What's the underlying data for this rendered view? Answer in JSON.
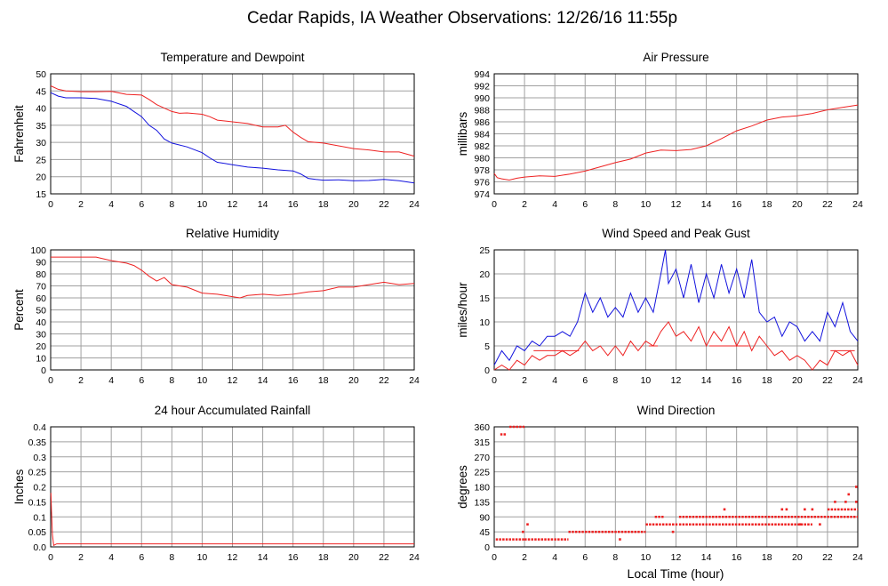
{
  "page": {
    "title": "Cedar Rapids, IA Weather Observations: 12/26/16 11:55p",
    "xlabel": "Local Time (hour)"
  },
  "colors": {
    "primary_series": "#ee2222",
    "secondary_series": "#1111dd",
    "grid": "#a0a0a0",
    "frame": "#000000"
  },
  "chart_data": [
    {
      "type": "line",
      "title": "Temperature and Dewpoint",
      "ylabel": "Fahrenheit",
      "xlim": [
        0,
        24
      ],
      "ylim": [
        15,
        50
      ],
      "xticks": [
        0,
        2,
        4,
        6,
        8,
        10,
        12,
        14,
        16,
        18,
        20,
        22,
        24
      ],
      "yticks": [
        15,
        20,
        25,
        30,
        35,
        40,
        45,
        50
      ],
      "grid": true,
      "series": [
        {
          "color": "#ee2222",
          "x": [
            0,
            0.5,
            1,
            2,
            3,
            4,
            5,
            6,
            6.5,
            7,
            7.5,
            8,
            8.5,
            9,
            10,
            10.5,
            11,
            12,
            13,
            13.5,
            14,
            15,
            15.5,
            16,
            16.5,
            17,
            18,
            19,
            20,
            21,
            22,
            23,
            24
          ],
          "y": [
            46.5,
            45.5,
            45,
            44.8,
            44.8,
            44.9,
            44,
            43.8,
            42.5,
            41,
            40,
            39,
            38.5,
            38.6,
            38.2,
            37.5,
            36.5,
            36,
            35.5,
            35,
            34.5,
            34.5,
            35,
            33,
            31.5,
            30.2,
            29.8,
            29,
            28.2,
            27.8,
            27.2,
            27.2,
            26
          ]
        },
        {
          "color": "#1111dd",
          "x": [
            0,
            0.5,
            1,
            2,
            3,
            4,
            5,
            5.5,
            6,
            6.5,
            7,
            7.5,
            8,
            9,
            10,
            10.5,
            11,
            12,
            13,
            14,
            15,
            16,
            16.5,
            17,
            17.5,
            18,
            19,
            20,
            21,
            22,
            23,
            24
          ],
          "y": [
            44.5,
            43.5,
            43,
            43,
            42.8,
            42,
            40.5,
            39,
            37.5,
            35,
            33.5,
            31,
            29.8,
            28.7,
            27,
            25.5,
            24.2,
            23.5,
            22.8,
            22.5,
            22,
            21.7,
            20.8,
            19.5,
            19.2,
            19,
            19.1,
            18.8,
            18.9,
            19.2,
            18.8,
            18.2
          ]
        }
      ]
    },
    {
      "type": "line",
      "title": "Air Pressure",
      "ylabel": "millibars",
      "xlim": [
        0,
        24
      ],
      "ylim": [
        974,
        994
      ],
      "xticks": [
        0,
        2,
        4,
        6,
        8,
        10,
        12,
        14,
        16,
        18,
        20,
        22,
        24
      ],
      "yticks": [
        974,
        976,
        978,
        980,
        982,
        984,
        986,
        988,
        990,
        992,
        994
      ],
      "grid": true,
      "series": [
        {
          "color": "#ee2222",
          "x": [
            0,
            0.2,
            0.5,
            1,
            1.5,
            2,
            3,
            4,
            5,
            6,
            7,
            8,
            9,
            10,
            11,
            12,
            13,
            14,
            15,
            16,
            17,
            18,
            19,
            20,
            21,
            22,
            23,
            24
          ],
          "y": [
            977.4,
            976.7,
            976.5,
            976.3,
            976.6,
            976.8,
            977,
            976.9,
            977.3,
            977.8,
            978.5,
            979.2,
            979.8,
            980.8,
            981.3,
            981.2,
            981.4,
            982,
            983.2,
            984.5,
            985.3,
            986.3,
            986.8,
            987,
            987.4,
            988,
            988.4,
            988.8
          ]
        }
      ]
    },
    {
      "type": "line",
      "title": "Relative Humidity",
      "ylabel": "Percent",
      "xlim": [
        0,
        24
      ],
      "ylim": [
        0,
        100
      ],
      "xticks": [
        0,
        2,
        4,
        6,
        8,
        10,
        12,
        14,
        16,
        18,
        20,
        22,
        24
      ],
      "yticks": [
        0,
        10,
        20,
        30,
        40,
        50,
        60,
        70,
        80,
        90,
        100
      ],
      "grid": true,
      "series": [
        {
          "color": "#ee2222",
          "x": [
            0,
            1,
            2,
            3,
            3.5,
            4,
            5,
            5.5,
            6,
            6.5,
            7,
            7.5,
            8,
            9,
            10,
            11,
            12,
            12.5,
            13,
            14,
            15,
            16,
            17,
            18,
            19,
            20,
            21,
            22,
            23,
            24
          ],
          "y": [
            94,
            94,
            94,
            94,
            92.5,
            91,
            89,
            87,
            83,
            78,
            74,
            77,
            71,
            69,
            64,
            63,
            61,
            60,
            62,
            63,
            62,
            63,
            65,
            66,
            69,
            69,
            71,
            73,
            71,
            72
          ]
        }
      ]
    },
    {
      "type": "line",
      "title": "Wind Speed and Peak Gust",
      "ylabel": "miles/hour",
      "xlim": [
        0,
        24
      ],
      "ylim": [
        0,
        25
      ],
      "xticks": [
        0,
        2,
        4,
        6,
        8,
        10,
        12,
        14,
        16,
        18,
        20,
        22,
        24
      ],
      "yticks": [
        0,
        5,
        10,
        15,
        20,
        25
      ],
      "grid": true,
      "series": [
        {
          "color": "#1111dd",
          "x": [
            0,
            0.5,
            1,
            1.5,
            2,
            2.5,
            3,
            3.5,
            4,
            4.5,
            5,
            5.5,
            6,
            6.5,
            7,
            7.5,
            8,
            8.5,
            9,
            9.5,
            10,
            10.5,
            11,
            11.3,
            11.5,
            12,
            12.5,
            13,
            13.5,
            14,
            14.5,
            15,
            15.5,
            16,
            16.5,
            17,
            17.5,
            18,
            18.5,
            19,
            19.5,
            20,
            20.5,
            21,
            21.5,
            22,
            22.5,
            23,
            23.5,
            24
          ],
          "y": [
            1,
            4,
            2,
            5,
            4,
            6,
            5,
            7,
            7,
            8,
            7,
            10,
            16,
            12,
            15,
            11,
            13,
            11,
            16,
            12,
            15,
            12,
            20,
            25,
            18,
            21,
            15,
            22,
            14,
            20,
            15,
            22,
            16,
            21,
            15,
            23,
            12,
            10,
            11,
            7,
            10,
            9,
            6,
            8,
            6,
            12,
            9,
            14,
            8,
            6
          ]
        },
        {
          "color": "#ee2222",
          "x": [
            0,
            0.5,
            1,
            1.5,
            2,
            2.5,
            3,
            3.5,
            4,
            4.5,
            5,
            5.5,
            6,
            6.5,
            7,
            7.5,
            8,
            8.5,
            9,
            9.5,
            10,
            10.5,
            11,
            11.5,
            12,
            12.5,
            13,
            13.5,
            14,
            14.5,
            15,
            15.5,
            16,
            16.5,
            17,
            17.5,
            18,
            18.5,
            19,
            19.5,
            20,
            20.5,
            21,
            21.5,
            22,
            22.5,
            23,
            23.5,
            24
          ],
          "y": [
            0,
            1,
            0,
            2,
            1,
            3,
            2,
            3,
            3,
            4,
            3,
            4,
            6,
            4,
            5,
            3,
            5,
            3,
            6,
            4,
            6,
            5,
            8,
            10,
            7,
            8,
            6,
            9,
            5,
            8,
            6,
            9,
            5,
            8,
            4,
            7,
            5,
            3,
            4,
            2,
            3,
            2,
            0,
            2,
            1,
            4,
            3,
            4,
            1
          ]
        },
        {
          "color": "#ee2222",
          "x": [
            2.6,
            5.6
          ],
          "y": [
            4,
            4
          ]
        },
        {
          "color": "#ee2222",
          "x": [
            10.2,
            10.8
          ],
          "y": [
            5,
            5
          ]
        },
        {
          "color": "#ee2222",
          "x": [
            14.2,
            16.8
          ],
          "y": [
            5,
            5
          ]
        },
        {
          "color": "#ee2222",
          "x": [
            22.2,
            23.8
          ],
          "y": [
            4,
            4
          ]
        }
      ]
    },
    {
      "type": "line",
      "title": "24 hour Accumulated Rainfall",
      "ylabel": "Inches",
      "xlim": [
        0,
        24
      ],
      "ylim": [
        0,
        0.4
      ],
      "xticks": [
        0,
        2,
        4,
        6,
        8,
        10,
        12,
        14,
        16,
        18,
        20,
        22,
        24
      ],
      "yticks": [
        0.0,
        0.05,
        0.1,
        0.15,
        0.2,
        0.25,
        0.3,
        0.35,
        0.4
      ],
      "ytick_labels": [
        "0.0",
        "0.05",
        "0.1",
        "0.15",
        "0.2",
        "0.25",
        "0.3",
        "0.35",
        "0.4"
      ],
      "grid": true,
      "series": [
        {
          "color": "#ee2222",
          "x": [
            0.02,
            0.05,
            0.12,
            0.2,
            0.4,
            24
          ],
          "y": [
            0.18,
            0.12,
            0.04,
            0.005,
            0.01,
            0.01
          ]
        }
      ]
    },
    {
      "type": "scatter",
      "title": "Wind Direction",
      "ylabel": "degrees",
      "xlim": [
        0,
        24
      ],
      "ylim": [
        0,
        360
      ],
      "xticks": [
        0,
        2,
        4,
        6,
        8,
        10,
        12,
        14,
        16,
        18,
        20,
        22,
        24
      ],
      "yticks": [
        0,
        45,
        90,
        135,
        180,
        225,
        270,
        315,
        360
      ],
      "grid": true,
      "segments": [
        {
          "x0": 0.1,
          "x1": 2.0,
          "y": 22.5
        },
        {
          "x0": 0.4,
          "x1": 0.8,
          "y": 337.5
        },
        {
          "x0": 1.0,
          "x1": 2.0,
          "y": 360
        },
        {
          "x0": 2.0,
          "x1": 4.9,
          "y": 22.5
        },
        {
          "x0": 4.9,
          "x1": 10.0,
          "y": 45
        },
        {
          "x0": 10.0,
          "x1": 12.1,
          "y": 67.5
        },
        {
          "x0": 10.6,
          "x1": 11.2,
          "y": 90
        },
        {
          "x0": 12.2,
          "x1": 24.0,
          "y": 90
        },
        {
          "x0": 12.2,
          "x1": 21.0,
          "y": 67.5
        },
        {
          "x0": 22.0,
          "x1": 24.0,
          "y": 112.5
        }
      ],
      "points": [
        {
          "x": 2.2,
          "y": 67.5
        },
        {
          "x": 1.9,
          "y": 45
        },
        {
          "x": 8.3,
          "y": 22.5
        },
        {
          "x": 11.8,
          "y": 45
        },
        {
          "x": 15.2,
          "y": 112.5
        },
        {
          "x": 19.0,
          "y": 112.5
        },
        {
          "x": 19.3,
          "y": 112.5
        },
        {
          "x": 20.5,
          "y": 112.5
        },
        {
          "x": 21.0,
          "y": 112.5
        },
        {
          "x": 22.5,
          "y": 135
        },
        {
          "x": 23.2,
          "y": 135
        },
        {
          "x": 23.9,
          "y": 135
        },
        {
          "x": 23.4,
          "y": 157.5
        },
        {
          "x": 23.9,
          "y": 180
        },
        {
          "x": 21.5,
          "y": 67.5
        },
        {
          "x": 20.2,
          "y": 67.5
        }
      ]
    }
  ]
}
